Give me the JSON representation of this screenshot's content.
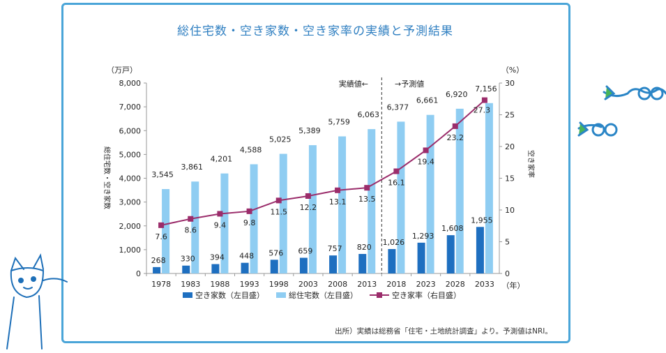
{
  "chart_data": {
    "type": "bar",
    "title": "総住宅数・空き家数・空き家率の実績と予測結果",
    "categories": [
      "1978",
      "1983",
      "1988",
      "1993",
      "1998",
      "2003",
      "2008",
      "2013",
      "2018",
      "2023",
      "2028",
      "2033"
    ],
    "series": [
      {
        "name": "空き家数（左目盛）",
        "type": "bar",
        "axis": "left",
        "values": [
          268,
          330,
          394,
          448,
          576,
          659,
          757,
          820,
          1026,
          1293,
          1608,
          1955
        ],
        "labels": [
          "268",
          "330",
          "394",
          "448",
          "576",
          "659",
          "757",
          "820",
          "1,026",
          "1,293",
          "1,608",
          "1,955"
        ]
      },
      {
        "name": "総住宅数（左目盛）",
        "type": "bar",
        "axis": "left",
        "values": [
          3545,
          3861,
          4201,
          4588,
          5025,
          5389,
          5759,
          6063,
          6377,
          6661,
          6920,
          7156
        ],
        "labels": [
          "3,545",
          "3,861",
          "4,201",
          "4,588",
          "5,025",
          "5,389",
          "5,759",
          "6,063",
          "6,377",
          "6,661",
          "6,920",
          "7,156"
        ]
      },
      {
        "name": "空き家率（右目盛）",
        "type": "line",
        "axis": "right",
        "values": [
          7.6,
          8.6,
          9.4,
          9.8,
          11.5,
          12.2,
          13.1,
          13.5,
          16.1,
          19.4,
          23.2,
          27.3
        ],
        "labels": [
          "7.6",
          "8.6",
          "9.4",
          "9.8",
          "11.5",
          "12.2",
          "13.1",
          "13.5",
          "16.1",
          "19.4",
          "23.2",
          "27.3"
        ]
      }
    ],
    "y_left": {
      "unit": "（万戸）",
      "label": "総住宅数・空き家数",
      "min": 0,
      "max": 8000,
      "step": 1000,
      "tick_labels": [
        "0",
        "1,000",
        "2,000",
        "3,000",
        "4,000",
        "5,000",
        "6,000",
        "7,000",
        "8,000"
      ]
    },
    "y_right": {
      "unit": "（%）",
      "label": "空き家率",
      "min": 0,
      "max": 30,
      "step": 5,
      "tick_labels": [
        "0",
        "5",
        "10",
        "15",
        "20",
        "25",
        "30"
      ]
    },
    "x_unit": "（年）",
    "annotations": {
      "actual": "実績値←",
      "forecast": "→予測値"
    },
    "legend_position": "bottom",
    "colors": {
      "vacant": "#1e6fc0",
      "total": "#8fcdf2",
      "rate": "#9b2d6b",
      "frame": "#4aa5d8",
      "title": "#2f7fc1"
    }
  },
  "source": "出所）実績は総務省「住宅・土地統計調査」より。予測値はNRI。"
}
